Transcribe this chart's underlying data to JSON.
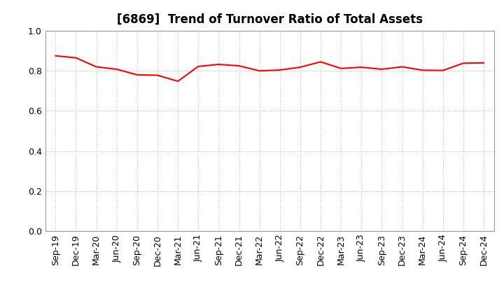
{
  "title": "[6869]  Trend of Turnover Ratio of Total Assets",
  "x_labels": [
    "Sep-19",
    "Dec-19",
    "Mar-20",
    "Jun-20",
    "Sep-20",
    "Dec-20",
    "Mar-21",
    "Jun-21",
    "Sep-21",
    "Dec-21",
    "Mar-22",
    "Jun-22",
    "Sep-22",
    "Dec-22",
    "Mar-23",
    "Jun-23",
    "Sep-23",
    "Dec-23",
    "Mar-24",
    "Jun-24",
    "Sep-24",
    "Dec-24"
  ],
  "y_values": [
    0.875,
    0.865,
    0.82,
    0.808,
    0.78,
    0.778,
    0.748,
    0.822,
    0.832,
    0.825,
    0.8,
    0.804,
    0.818,
    0.845,
    0.812,
    0.818,
    0.808,
    0.82,
    0.803,
    0.802,
    0.838,
    0.84
  ],
  "line_color": "#FF0000",
  "line_width": 1.5,
  "ylim": [
    0.0,
    1.0
  ],
  "yticks": [
    0.0,
    0.2,
    0.4,
    0.6,
    0.8,
    1.0
  ],
  "background_color": "#FFFFFF",
  "grid_color": "#BBBBBB",
  "title_fontsize": 12,
  "tick_fontsize": 9
}
